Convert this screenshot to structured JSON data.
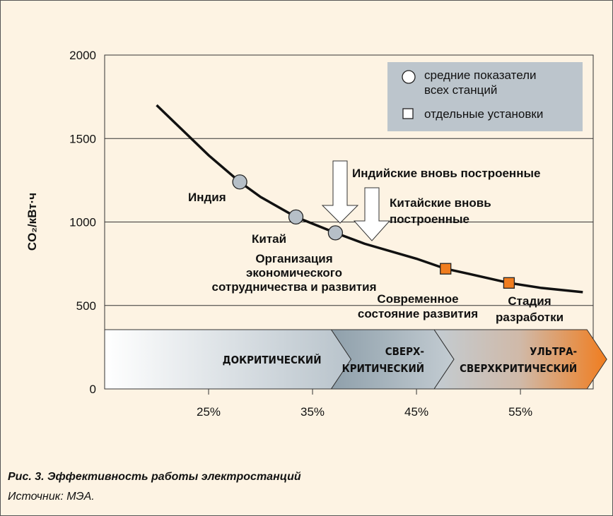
{
  "chart_data": {
    "type": "line",
    "ylabel": "CO₂/кВт·ч",
    "xlim": [
      15,
      62
    ],
    "ylim": [
      0,
      2000
    ],
    "xticks": [
      {
        "value": 25,
        "label": "25%"
      },
      {
        "value": 35,
        "label": "35%"
      },
      {
        "value": 45,
        "label": "45%"
      },
      {
        "value": 55,
        "label": "55%"
      }
    ],
    "yticks": [
      0,
      500,
      1000,
      1500,
      2000
    ],
    "grid": true,
    "series": [
      {
        "color": "#111111",
        "marker": "none",
        "x": [
          20,
          25,
          28,
          30,
          33.4,
          37.2,
          40,
          45,
          47.8,
          50,
          53.9,
          57,
          61
        ],
        "values": [
          1700,
          1400,
          1240,
          1150,
          1030,
          935,
          870,
          780,
          720,
          690,
          635,
          605,
          580
        ]
      },
      {
        "name": "средние показатели всех станций",
        "color": "#b6bfc7",
        "marker": "circle",
        "x": [
          28,
          33.4,
          37.2
        ],
        "values": [
          1240,
          1030,
          935
        ]
      },
      {
        "name": "отдельные установки",
        "color": "#f07d1f",
        "marker": "square",
        "x": [
          47.8,
          53.9
        ],
        "values": [
          720,
          635
        ]
      }
    ],
    "point_labels": [
      [
        "Индия"
      ],
      [
        "Китай"
      ],
      [
        "Организация",
        "экономического",
        "сотрудничества и развития"
      ],
      [
        "Современное",
        "состояние развития"
      ],
      [
        "Стадия",
        "разработки"
      ]
    ],
    "annotations": [
      [
        "Индийские вновь построенные"
      ],
      [
        "Китайские вновь",
        "построенные"
      ]
    ],
    "bands": [
      {
        "label": [
          "ДОКРИТИЧЕСКИЙ"
        ],
        "from": 15,
        "to": 36.8
      },
      {
        "label": [
          "СВЕРХ-",
          "КРИТИЧЕСКИЙ"
        ],
        "from": 36.8,
        "to": 46.7
      },
      {
        "label": [
          "УЛЬТРА-",
          "СВЕРХКРИТИЧЕСКИЙ"
        ],
        "from": 46.7,
        "to": 61.4
      }
    ],
    "caption": "Рис. 3. Эффективность работы электростанций",
    "source": "Источник: МЭА."
  }
}
